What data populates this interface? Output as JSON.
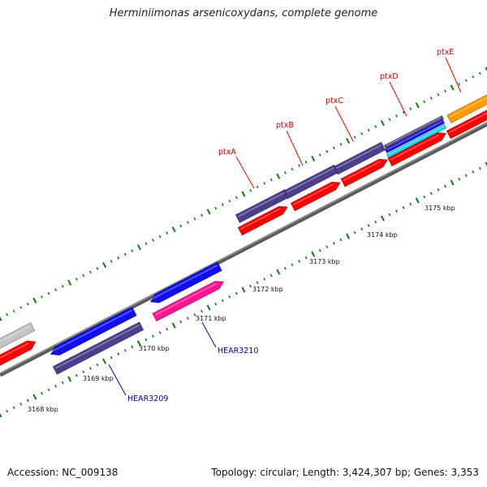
{
  "title": "Herminiimonas arsenicoxydans, complete genome",
  "footer": {
    "accession": "Accession: NC_009138",
    "summary": "Topology: circular; Length: 3,424,307 bp; Genes: 3,353"
  },
  "colors": {
    "red": "#ff0000",
    "navy": "#4a3f8c",
    "blue": "#1010ee",
    "magenta": "#ff1493",
    "gray": "#c4c4c4",
    "orange": "#ff9a00",
    "cyan": "#00e0ff",
    "backbone": "#8a8a8a",
    "tick": "#147814",
    "gene_label_red": "#cc0000",
    "gene_label_blue": "#0000aa"
  },
  "scale_labels": [
    "3168 kbp",
    "3169 kbp",
    "3170 kbp",
    "3171 kbp",
    "3172 kbp",
    "3173 kbp",
    "3174 kbp",
    "3175 kbp"
  ],
  "gene_labels": [
    {
      "name": "ptxA",
      "color": "red"
    },
    {
      "name": "ptxB",
      "color": "red"
    },
    {
      "name": "ptxC",
      "color": "red"
    },
    {
      "name": "ptxD",
      "color": "red"
    },
    {
      "name": "ptxE",
      "color": "red"
    },
    {
      "name": "HEAR3210",
      "color": "blue"
    },
    {
      "name": "HEAR3209",
      "color": "blue"
    }
  ]
}
